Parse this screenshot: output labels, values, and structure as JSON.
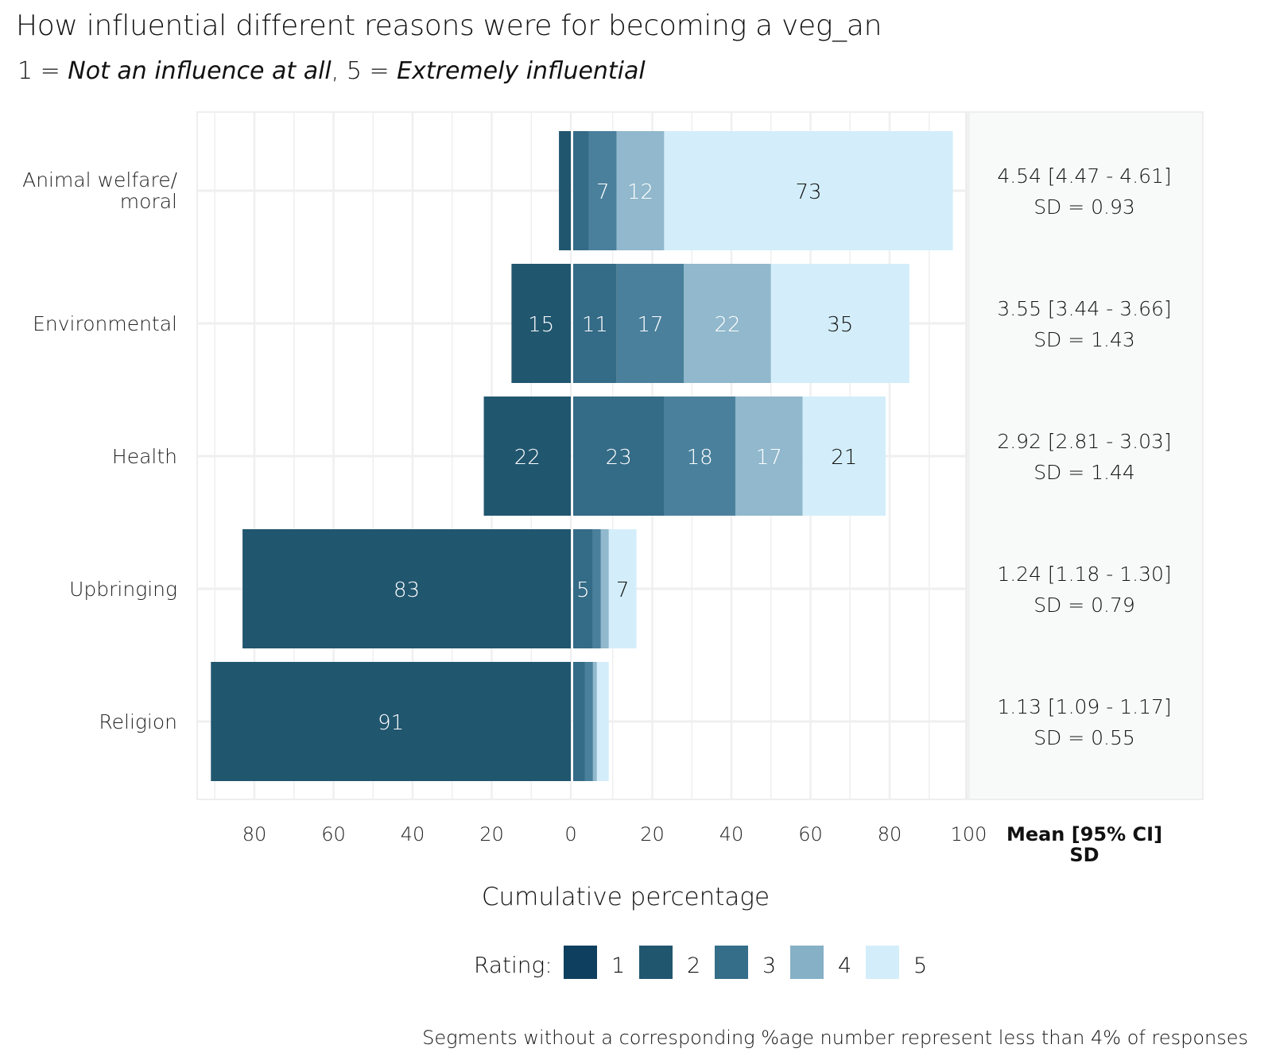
{
  "chart_data": {
    "type": "bar",
    "orientation": "horizontal",
    "stacked": "diverging",
    "title": "How influential different reasons were for becoming a veg_an",
    "subtitle": {
      "prefix": "1 = ",
      "low_label": "Not an influence at all",
      "mid": ", 5 = ",
      "high_label": "Extremely influential"
    },
    "xlabel": "Cumulative percentage",
    "ylabel": "",
    "xlim": [
      -92,
      100
    ],
    "x_ticks": [
      -80,
      -60,
      -40,
      -20,
      0,
      20,
      40,
      60,
      80,
      100
    ],
    "x_tick_labels": [
      "80",
      "60",
      "40",
      "20",
      "0",
      "20",
      "40",
      "60",
      "80",
      "100"
    ],
    "grid": true,
    "legend": {
      "title": "Rating:",
      "position": "bottom",
      "entries": [
        "1",
        "2",
        "3",
        "4",
        "5"
      ]
    },
    "colors": [
      "#0f3f5e",
      "#21566f",
      "#356e89",
      "#8ab3c9",
      "#d3eefa"
    ],
    "categories": [
      "Animal welfare/\nmoral",
      "Environmental",
      "Health",
      "Upbringing",
      "Religion"
    ],
    "series": [
      {
        "name": "1",
        "values": [
          3,
          15,
          22,
          83,
          91
        ]
      },
      {
        "name": "2",
        "values": [
          4,
          11,
          23,
          5,
          3
        ]
      },
      {
        "name": "3",
        "values": [
          7,
          17,
          18,
          2,
          2
        ]
      },
      {
        "name": "4",
        "values": [
          12,
          22,
          17,
          2,
          1
        ]
      },
      {
        "name": "5",
        "values": [
          73,
          35,
          21,
          7,
          3
        ]
      }
    ],
    "data_labels": [
      [
        "",
        "",
        "7",
        "12",
        "73"
      ],
      [
        "15",
        "11",
        "17",
        "22",
        "35"
      ],
      [
        "22",
        "23",
        "18",
        "17",
        "21"
      ],
      [
        "83",
        "5",
        "",
        "",
        "7"
      ],
      [
        "91",
        "",
        "",
        "",
        ""
      ]
    ],
    "side_panel": {
      "header_line1": "Mean [95% CI]",
      "header_line2": "SD",
      "rows": [
        {
          "mean": "4.54",
          "ci": "[4.47 - 4.61]",
          "sd": "SD = 0.93"
        },
        {
          "mean": "3.55",
          "ci": "[3.44 - 3.66]",
          "sd": "SD = 1.43"
        },
        {
          "mean": "2.92",
          "ci": "[2.81 - 3.03]",
          "sd": "SD = 1.44"
        },
        {
          "mean": "1.24",
          "ci": "[1.18 - 1.30]",
          "sd": "SD = 0.79"
        },
        {
          "mean": "1.13",
          "ci": "[1.09 - 1.17]",
          "sd": "SD = 0.55"
        }
      ]
    },
    "caption": "Segments without a corresponding %age number represent less than 4% of responses"
  }
}
